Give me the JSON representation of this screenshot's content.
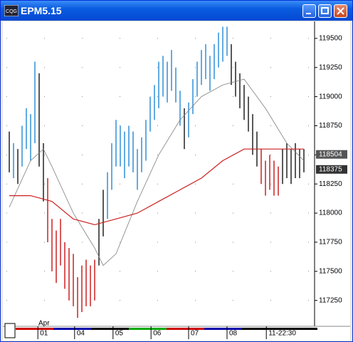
{
  "window": {
    "title": "EPM5.15"
  },
  "chart_data": {
    "type": "range-bar",
    "x": [
      0,
      1,
      2,
      3,
      4,
      5,
      6,
      7,
      8,
      9,
      10,
      11,
      12,
      13,
      14,
      15,
      16,
      17,
      18,
      19,
      20,
      21,
      22,
      23,
      24,
      25,
      26,
      27,
      28,
      29,
      30,
      31,
      32,
      33,
      34,
      35,
      36,
      37,
      38,
      39,
      40,
      41,
      42,
      43,
      44,
      45,
      46,
      47,
      48,
      49,
      50,
      51,
      52,
      53,
      54,
      55,
      56,
      57,
      58,
      59,
      60,
      61,
      62,
      63,
      64,
      65,
      66,
      67,
      68,
      69
    ],
    "high": [
      118700,
      118600,
      118550,
      118750,
      118900,
      118850,
      119300,
      119200,
      118600,
      118300,
      117950,
      117850,
      117950,
      117750,
      117700,
      117650,
      117450,
      117550,
      117600,
      117550,
      117600,
      117950,
      118200,
      118350,
      118600,
      118800,
      118750,
      118700,
      118750,
      118700,
      118550,
      118650,
      118800,
      119000,
      119100,
      119300,
      119350,
      119300,
      119400,
      119250,
      119050,
      118900,
      118950,
      119150,
      119300,
      119400,
      119450,
      119350,
      119450,
      119550,
      119600,
      119600,
      119450,
      119300,
      119200,
      119100,
      119000,
      118850,
      118700,
      118550,
      118450,
      118500,
      118450,
      118400,
      118550,
      118600,
      118550,
      118600,
      118550,
      118550
    ],
    "low": [
      118350,
      118300,
      118250,
      118400,
      118550,
      118450,
      118600,
      118400,
      118100,
      117750,
      117500,
      117400,
      117550,
      117350,
      117250,
      117200,
      117100,
      117150,
      117200,
      117200,
      117250,
      117550,
      117800,
      117950,
      118200,
      118400,
      118400,
      118300,
      118400,
      118350,
      118200,
      118350,
      118450,
      118700,
      118800,
      118900,
      119000,
      118950,
      119050,
      118950,
      118750,
      118550,
      118650,
      118850,
      119000,
      119100,
      119150,
      119050,
      119150,
      119250,
      119300,
      119350,
      119100,
      119000,
      118900,
      118800,
      118700,
      118500,
      118400,
      118250,
      118150,
      118200,
      118150,
      118150,
      118250,
      118300,
      118250,
      118300,
      118300,
      118350
    ],
    "colors": [
      "#222222",
      "#2f8fd8",
      "#222222",
      "#2f8fd8",
      "#2f8fd8",
      "#2f8fd8",
      "#2f8fd8",
      "#222222",
      "#222222",
      "#cc2020",
      "#cc2020",
      "#cc2020",
      "#cc2020",
      "#cc2020",
      "#cc2020",
      "#cc2020",
      "#cc2020",
      "#cc2020",
      "#cc2020",
      "#cc2020",
      "#cc2020",
      "#222222",
      "#222222",
      "#2f8fd8",
      "#2f8fd8",
      "#2f8fd8",
      "#2f8fd8",
      "#2f8fd8",
      "#2f8fd8",
      "#2f8fd8",
      "#2f8fd8",
      "#2f8fd8",
      "#2f8fd8",
      "#2f8fd8",
      "#2f8fd8",
      "#2f8fd8",
      "#2f8fd8",
      "#2f8fd8",
      "#2f8fd8",
      "#2f8fd8",
      "#2f8fd8",
      "#222222",
      "#2f8fd8",
      "#2f8fd8",
      "#2f8fd8",
      "#2f8fd8",
      "#2f8fd8",
      "#2f8fd8",
      "#2f8fd8",
      "#2f8fd8",
      "#2f8fd8",
      "#2f8fd8",
      "#222222",
      "#222222",
      "#222222",
      "#222222",
      "#222222",
      "#222222",
      "#222222",
      "#cc2020",
      "#cc2020",
      "#cc2020",
      "#cc2020",
      "#cc2020",
      "#222222",
      "#222222",
      "#222222",
      "#222222",
      "#222222",
      "#222222"
    ],
    "lines": [
      {
        "color": "#808080",
        "x": [
          0,
          5,
          8,
          10,
          15,
          20,
          22,
          25,
          30,
          35,
          40,
          45,
          50,
          55,
          60,
          65,
          69
        ],
        "values": [
          118050,
          118450,
          118550,
          118400,
          118000,
          117700,
          117550,
          117650,
          118100,
          118500,
          118800,
          119000,
          119100,
          119150,
          118900,
          118600,
          118450
        ]
      },
      {
        "color": "#cc2020",
        "x": [
          0,
          5,
          10,
          15,
          20,
          25,
          30,
          35,
          40,
          45,
          50,
          55,
          60,
          65,
          69
        ],
        "values": [
          118150,
          118150,
          118100,
          117950,
          117900,
          117950,
          118000,
          118100,
          118200,
          118300,
          118450,
          118550,
          118550,
          118550,
          118550
        ]
      }
    ],
    "xlim": [
      -0.67,
      70
    ],
    "xticks": [
      {
        "value": 6.7,
        "label": "01"
      },
      {
        "value": 15.3,
        "label": "04"
      },
      {
        "value": 24.3,
        "label": "05"
      },
      {
        "value": 33.2,
        "label": "06"
      },
      {
        "value": 42,
        "label": "07"
      },
      {
        "value": 51,
        "label": "08"
      },
      {
        "value": 60.2,
        "label": "11-22:30"
      }
    ],
    "x_month_label": "Apr",
    "ylim": [
      117040,
      119640
    ],
    "yticks": [
      117250,
      117500,
      117750,
      118000,
      118250,
      118500,
      118750,
      119000,
      119250,
      119500
    ],
    "price_labels": [
      118504,
      118375
    ],
    "grid": true
  }
}
